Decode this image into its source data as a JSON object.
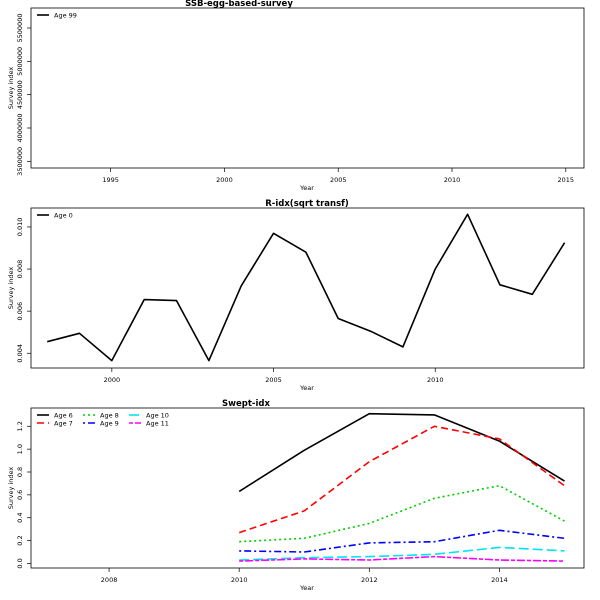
{
  "chart_data": [
    {
      "type": "line",
      "title": "SSB-egg-based-survey",
      "xlabel": "Year",
      "ylabel": "Survey index",
      "xlim": [
        1991.5,
        2015.8
      ],
      "ylim": [
        3400000,
        5800000
      ],
      "x_ticks": [
        1995,
        2000,
        2005,
        2010,
        2015
      ],
      "y_ticks": [
        3500000,
        4000000,
        4500000,
        5000000,
        5500000
      ],
      "grid": false,
      "legend_position": "top-left",
      "series": [
        {
          "name": "Age 99",
          "color": "#000000",
          "dash": "solid",
          "x": [],
          "y": []
        }
      ]
    },
    {
      "type": "line",
      "title": "R-idx(sqrt transf)",
      "xlabel": "Year",
      "ylabel": "Survey index",
      "xlim": [
        1997.5,
        2014.6
      ],
      "ylim": [
        0.0033,
        0.0109
      ],
      "x_ticks": [
        2000,
        2005,
        2010
      ],
      "y_ticks": [
        0.004,
        0.006,
        0.008,
        0.01
      ],
      "grid": false,
      "legend_position": "top-left",
      "series": [
        {
          "name": "Age 0",
          "color": "#000000",
          "dash": "solid",
          "x": [
            1998,
            1999,
            2000,
            2001,
            2002,
            2003,
            2004,
            2005,
            2006,
            2007,
            2008,
            2009,
            2010,
            2011,
            2012,
            2013,
            2014
          ],
          "y": [
            0.00455,
            0.00495,
            0.00365,
            0.00655,
            0.0065,
            0.00365,
            0.0072,
            0.0097,
            0.0088,
            0.00565,
            0.00505,
            0.0043,
            0.008,
            0.0106,
            0.00725,
            0.0068,
            0.00925
          ]
        }
      ]
    },
    {
      "type": "line",
      "title": "Swept-idx",
      "xlabel": "Year",
      "ylabel": "Survey index",
      "xlim": [
        2006.8,
        2015.3
      ],
      "ylim": [
        -0.04,
        1.36
      ],
      "x_ticks": [
        2008,
        2010,
        2012,
        2014
      ],
      "y_ticks": [
        0.0,
        0.2,
        0.4,
        0.6,
        0.8,
        1.0,
        1.2
      ],
      "grid": false,
      "legend_position": "top-left",
      "series": [
        {
          "name": "Age 6",
          "color": "#000000",
          "dash": "solid",
          "x": [
            2010,
            2011,
            2012,
            2013,
            2014,
            2015
          ],
          "y": [
            0.63,
            0.99,
            1.31,
            1.3,
            1.07,
            0.72
          ]
        },
        {
          "name": "Age 7",
          "color": "#ff0000",
          "dash": "dashed",
          "x": [
            2010,
            2011,
            2012,
            2013,
            2014,
            2015
          ],
          "y": [
            0.27,
            0.46,
            0.89,
            1.2,
            1.09,
            0.68
          ]
        },
        {
          "name": "Age 8",
          "color": "#00cd00",
          "dash": "dotted",
          "x": [
            2010,
            2011,
            2012,
            2013,
            2014,
            2015
          ],
          "y": [
            0.19,
            0.22,
            0.35,
            0.57,
            0.68,
            0.37
          ]
        },
        {
          "name": "Age 9",
          "color": "#0000ff",
          "dash": "dotdash",
          "x": [
            2010,
            2011,
            2012,
            2013,
            2014,
            2015
          ],
          "y": [
            0.11,
            0.1,
            0.18,
            0.19,
            0.29,
            0.22
          ]
        },
        {
          "name": "Age 10",
          "color": "#00e5ee",
          "dash": "longdash",
          "x": [
            2010,
            2011,
            2012,
            2013,
            2014,
            2015
          ],
          "y": [
            0.03,
            0.05,
            0.06,
            0.08,
            0.14,
            0.11
          ]
        },
        {
          "name": "Age 11",
          "color": "#ff00ff",
          "dash": "twodash",
          "x": [
            2010,
            2011,
            2012,
            2013,
            2014,
            2015
          ],
          "y": [
            0.02,
            0.04,
            0.03,
            0.06,
            0.03,
            0.02
          ]
        }
      ]
    }
  ]
}
